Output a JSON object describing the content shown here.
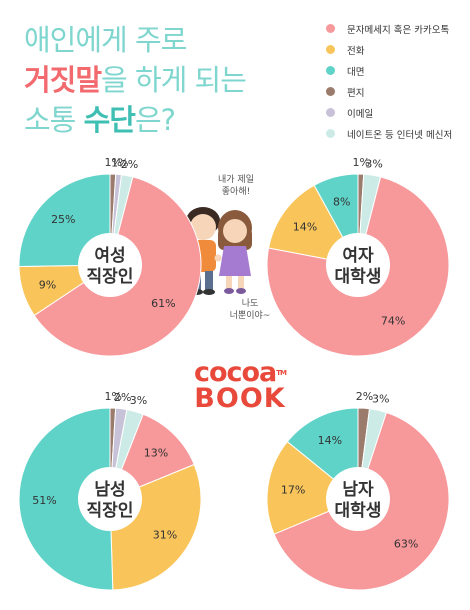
{
  "title": {
    "line1": "애인에게 주로",
    "line2_red": "거짓말",
    "line2_rest": "을 하게 되는",
    "line3_start": "소통 ",
    "line3_teal": "수단",
    "line3_end": "은?"
  },
  "legend": [
    {
      "label": "문자메세지 혹은 카카오톡",
      "color": "#f7989a"
    },
    {
      "label": "전화",
      "color": "#f9c55b"
    },
    {
      "label": "대면",
      "color": "#5fd3c8"
    },
    {
      "label": "편지",
      "color": "#9b7b6b"
    },
    {
      "label": "이메일",
      "color": "#c8c2d8"
    },
    {
      "label": "네이트온 등 인터넷 메신저",
      "color": "#cdebe6"
    }
  ],
  "notes": {
    "top": [
      "내가 제일",
      "좋아해!"
    ],
    "bottom": [
      "나도",
      "너뿐이야~"
    ]
  },
  "logo": {
    "top": "cocoa",
    "bottom": "BOOK",
    "tm": "TM"
  },
  "chart_data": [
    {
      "type": "pie",
      "center_label": [
        "여성",
        "직장인"
      ],
      "slices": [
        {
          "name": "문자메세지 혹은 카카오톡",
          "value": 61,
          "label": "61%"
        },
        {
          "name": "전화",
          "value": 9,
          "label": "9%"
        },
        {
          "name": "대면",
          "value": 25,
          "label": "25%"
        },
        {
          "name": "편지",
          "value": 1,
          "label": "1%"
        },
        {
          "name": "이메일",
          "value": 1,
          "label": "1%"
        },
        {
          "name": "네이트온 등 인터넷 메신저",
          "value": 2,
          "label": "2%"
        }
      ]
    },
    {
      "type": "pie",
      "center_label": [
        "여자",
        "대학생"
      ],
      "slices": [
        {
          "name": "문자메세지 혹은 카카오톡",
          "value": 74,
          "label": "74%"
        },
        {
          "name": "전화",
          "value": 14,
          "label": "14%"
        },
        {
          "name": "대면",
          "value": 8,
          "label": "8%"
        },
        {
          "name": "편지",
          "value": 1,
          "label": "1%"
        },
        {
          "name": "이메일",
          "value": 0,
          "label": ""
        },
        {
          "name": "네이트온 등 인터넷 메신저",
          "value": 3,
          "label": "3%"
        }
      ]
    },
    {
      "type": "pie",
      "center_label": [
        "남성",
        "직장인"
      ],
      "slices": [
        {
          "name": "문자메세지 혹은 카카오톡",
          "value": 13,
          "label": "13%"
        },
        {
          "name": "전화",
          "value": 31,
          "label": "31%"
        },
        {
          "name": "대면",
          "value": 51,
          "label": "51%"
        },
        {
          "name": "편지",
          "value": 1,
          "label": "1%"
        },
        {
          "name": "이메일",
          "value": 2,
          "label": "2%"
        },
        {
          "name": "네이트온 등 인터넷 메신저",
          "value": 3,
          "label": "3%"
        }
      ]
    },
    {
      "type": "pie",
      "center_label": [
        "남자",
        "대학생"
      ],
      "slices": [
        {
          "name": "문자메세지 혹은 카카오톡",
          "value": 63,
          "label": "63%"
        },
        {
          "name": "전화",
          "value": 17,
          "label": "17%"
        },
        {
          "name": "대면",
          "value": 14,
          "label": "14%"
        },
        {
          "name": "편지",
          "value": 2,
          "label": "2%"
        },
        {
          "name": "이메일",
          "value": 0,
          "label": ""
        },
        {
          "name": "네이트온 등 인터넷 메신저",
          "value": 3,
          "label": "3%"
        }
      ]
    }
  ]
}
